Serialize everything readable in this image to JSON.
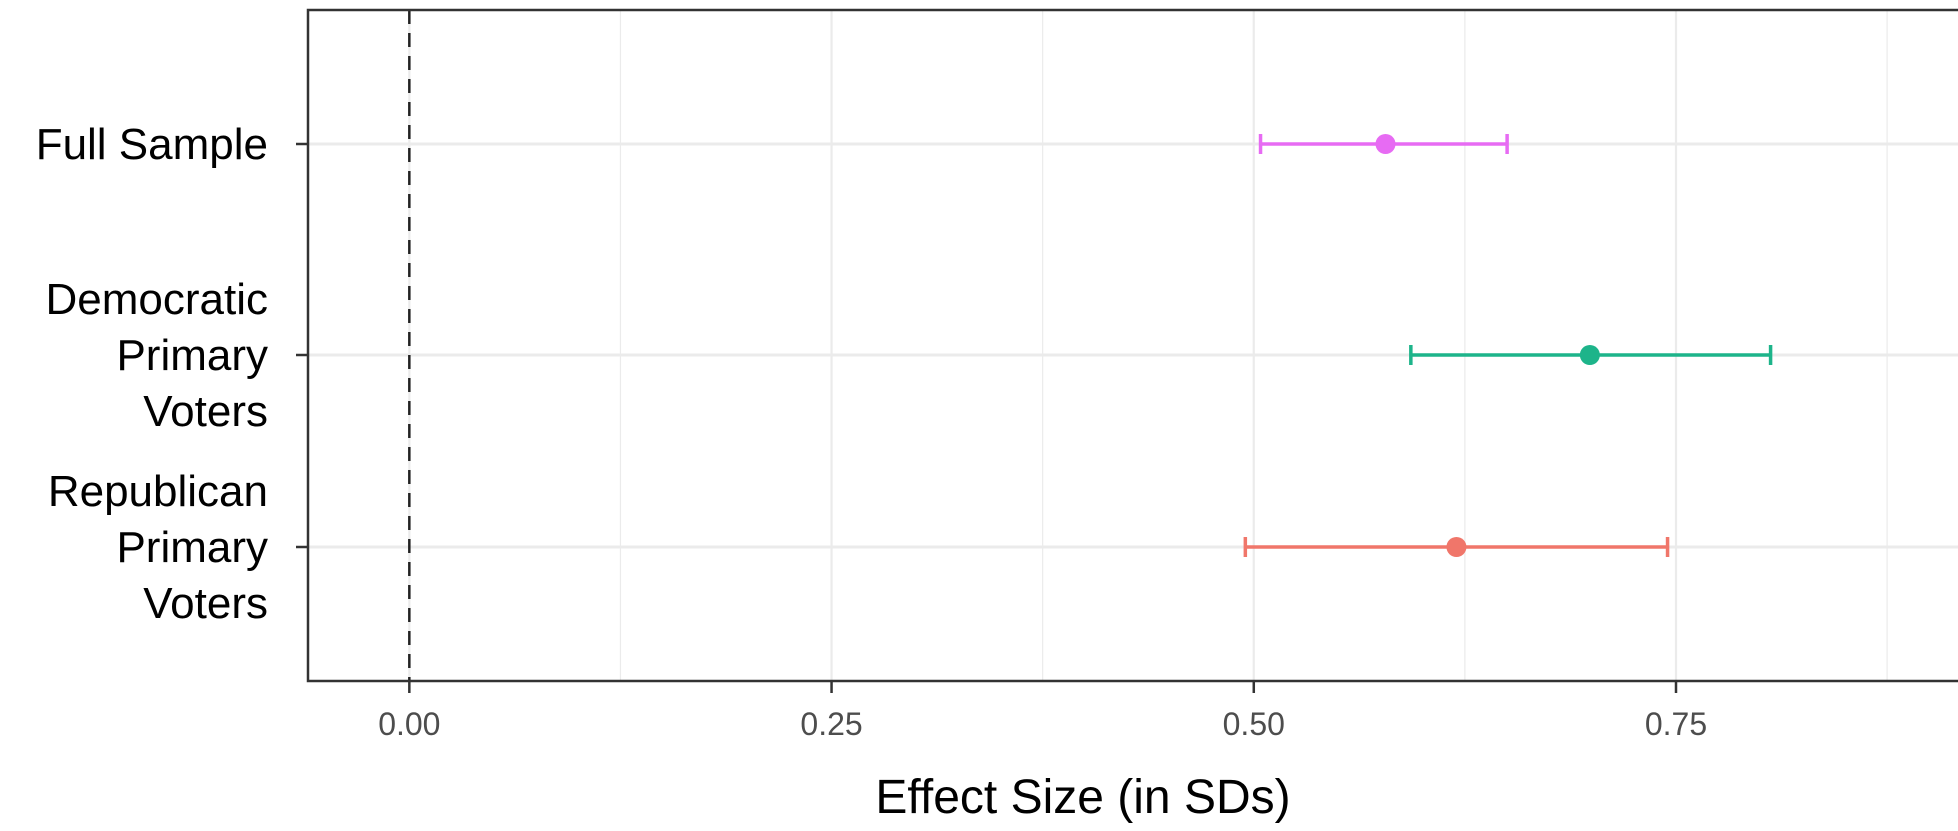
{
  "chart_data": {
    "type": "forest",
    "title": "",
    "xlabel": "Effect Size (in SDs)",
    "ylabel": "",
    "xlim": [
      -0.06,
      0.93
    ],
    "x_ticks": [
      0.0,
      0.25,
      0.5,
      0.75
    ],
    "x_tick_labels": [
      "0.00",
      "0.25",
      "0.50",
      "0.75"
    ],
    "grid": true,
    "legend": "none",
    "reference_line": {
      "x": 0,
      "style": "dashed"
    },
    "series": [
      {
        "label_lines": [
          "Full Sample"
        ],
        "estimate": 0.578,
        "ci_low": 0.504,
        "ci_high": 0.65,
        "color": "#e76bf3"
      },
      {
        "label_lines": [
          "Democratic",
          "Primary",
          "Voters"
        ],
        "estimate": 0.699,
        "ci_low": 0.593,
        "ci_high": 0.806,
        "color": "#1db48a"
      },
      {
        "label_lines": [
          "Republican",
          "Primary",
          "Voters"
        ],
        "estimate": 0.62,
        "ci_low": 0.495,
        "ci_high": 0.745,
        "color": "#f0766a"
      }
    ]
  }
}
